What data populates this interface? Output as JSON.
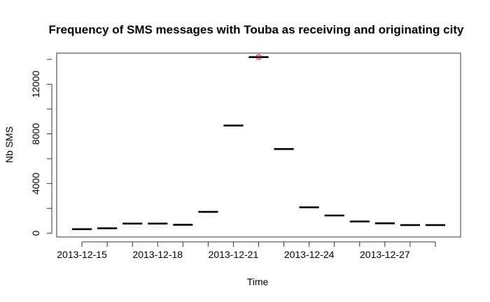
{
  "chart_data": {
    "type": "scatter",
    "title": "Frequency of SMS messages with Touba as receiving and originating city",
    "xlabel": "Time",
    "ylabel": "Nb SMS",
    "xlim": [
      "2013-12-14",
      "2013-12-30"
    ],
    "ylim": [
      -300,
      14500
    ],
    "yticks": [
      0,
      4000,
      8000,
      12000
    ],
    "xtick_labels": [
      "2013-12-15",
      "2013-12-18",
      "2013-12-21",
      "2013-12-24",
      "2013-12-27"
    ],
    "grid": false,
    "legend": "none",
    "points": [
      {
        "x": "2013-12-15",
        "y": 330
      },
      {
        "x": "2013-12-16",
        "y": 400
      },
      {
        "x": "2013-12-17",
        "y": 780
      },
      {
        "x": "2013-12-18",
        "y": 780
      },
      {
        "x": "2013-12-19",
        "y": 680
      },
      {
        "x": "2013-12-20",
        "y": 1720
      },
      {
        "x": "2013-12-21",
        "y": 8670
      },
      {
        "x": "2013-12-22",
        "y": 14180
      },
      {
        "x": "2013-12-23",
        "y": 6780
      },
      {
        "x": "2013-12-24",
        "y": 2090
      },
      {
        "x": "2013-12-25",
        "y": 1430
      },
      {
        "x": "2013-12-26",
        "y": 950
      },
      {
        "x": "2013-12-27",
        "y": 800
      },
      {
        "x": "2013-12-28",
        "y": 660
      },
      {
        "x": "2013-12-29",
        "y": 660
      }
    ],
    "highlight": {
      "x": "2013-12-22",
      "y": 14180,
      "color": "#cc0000"
    },
    "colors": {
      "segments": "#000000",
      "highlight": "#cc0000"
    }
  }
}
